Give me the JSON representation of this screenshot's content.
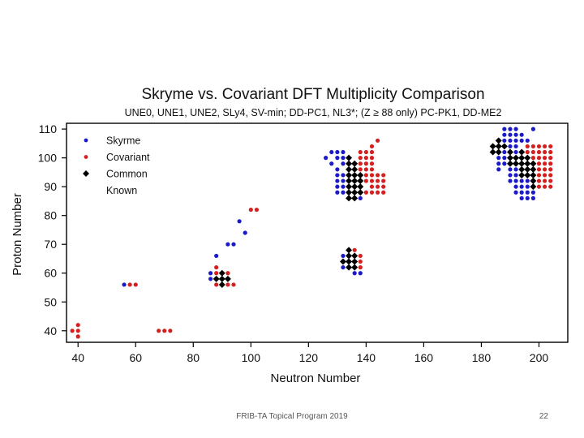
{
  "chart_data": {
    "type": "scatter",
    "title": "Skryme vs. Covariant DFT Multiplicity Comparison",
    "subtitle": "UNE0, UNE1, UNE2, SLy4, SV-min; DD-PC1, NL3*; (Z ≥ 88 only) PC-PK1, DD-ME2",
    "xlabel": "Neutron Number",
    "ylabel": "Proton Number",
    "xlim": [
      36,
      210
    ],
    "ylim": [
      36,
      112
    ],
    "xticks": [
      "40",
      "60",
      "80",
      "100",
      "120",
      "140",
      "160",
      "180",
      "200"
    ],
    "yticks": [
      "40",
      "50",
      "60",
      "70",
      "80",
      "90",
      "100",
      "110"
    ],
    "legend_position": "top-left",
    "series": [
      {
        "name": "Skyrme",
        "color": "#1a1ac8",
        "marker": "circle",
        "points": [
          [
            56,
            56
          ],
          [
            86,
            58
          ],
          [
            86,
            60
          ],
          [
            88,
            66
          ],
          [
            92,
            70
          ],
          [
            94,
            70
          ],
          [
            96,
            78
          ],
          [
            98,
            74
          ],
          [
            126,
            100
          ],
          [
            128,
            98
          ],
          [
            128,
            102
          ],
          [
            130,
            96
          ],
          [
            130,
            100
          ],
          [
            130,
            102
          ],
          [
            132,
            90
          ],
          [
            132,
            92
          ],
          [
            132,
            94
          ],
          [
            132,
            98
          ],
          [
            132,
            100
          ],
          [
            132,
            102
          ],
          [
            130,
            94
          ],
          [
            130,
            92
          ],
          [
            130,
            90
          ],
          [
            130,
            88
          ],
          [
            132,
            88
          ],
          [
            134,
            88
          ],
          [
            134,
            86
          ],
          [
            136,
            86
          ],
          [
            138,
            86
          ],
          [
            136,
            60
          ],
          [
            138,
            60
          ],
          [
            132,
            62
          ],
          [
            132,
            64
          ],
          [
            132,
            66
          ],
          [
            134,
            68
          ],
          [
            186,
            96
          ],
          [
            186,
            98
          ],
          [
            186,
            100
          ],
          [
            188,
            98
          ],
          [
            188,
            100
          ],
          [
            188,
            102
          ],
          [
            188,
            106
          ],
          [
            188,
            108
          ],
          [
            188,
            110
          ],
          [
            190,
            104
          ],
          [
            190,
            106
          ],
          [
            190,
            108
          ],
          [
            190,
            110
          ],
          [
            192,
            102
          ],
          [
            192,
            104
          ],
          [
            192,
            106
          ],
          [
            192,
            108
          ],
          [
            192,
            110
          ],
          [
            194,
            106
          ],
          [
            194,
            108
          ],
          [
            196,
            106
          ],
          [
            198,
            110
          ],
          [
            190,
            92
          ],
          [
            190,
            94
          ],
          [
            190,
            96
          ],
          [
            192,
            88
          ],
          [
            192,
            90
          ],
          [
            192,
            92
          ],
          [
            192,
            94
          ],
          [
            192,
            96
          ],
          [
            194,
            86
          ],
          [
            194,
            88
          ],
          [
            194,
            90
          ],
          [
            194,
            92
          ],
          [
            196,
            86
          ],
          [
            196,
            88
          ],
          [
            196,
            90
          ],
          [
            196,
            92
          ],
          [
            198,
            86
          ],
          [
            198,
            88
          ]
        ]
      },
      {
        "name": "Covariant",
        "color": "#d42020",
        "marker": "circle",
        "points": [
          [
            38,
            40
          ],
          [
            40,
            38
          ],
          [
            40,
            40
          ],
          [
            40,
            42
          ],
          [
            58,
            56
          ],
          [
            60,
            56
          ],
          [
            68,
            40
          ],
          [
            70,
            40
          ],
          [
            72,
            40
          ],
          [
            88,
            56
          ],
          [
            88,
            60
          ],
          [
            88,
            62
          ],
          [
            92,
            56
          ],
          [
            92,
            58
          ],
          [
            92,
            60
          ],
          [
            94,
            56
          ],
          [
            100,
            82
          ],
          [
            102,
            82
          ],
          [
            138,
            96
          ],
          [
            138,
            98
          ],
          [
            138,
            100
          ],
          [
            138,
            102
          ],
          [
            140,
            92
          ],
          [
            140,
            94
          ],
          [
            140,
            96
          ],
          [
            140,
            98
          ],
          [
            140,
            100
          ],
          [
            140,
            102
          ],
          [
            142,
            90
          ],
          [
            142,
            92
          ],
          [
            142,
            94
          ],
          [
            142,
            96
          ],
          [
            142,
            98
          ],
          [
            142,
            100
          ],
          [
            142,
            102
          ],
          [
            142,
            104
          ],
          [
            144,
            106
          ],
          [
            144,
            88
          ],
          [
            144,
            90
          ],
          [
            144,
            92
          ],
          [
            144,
            94
          ],
          [
            146,
            88
          ],
          [
            146,
            90
          ],
          [
            146,
            92
          ],
          [
            146,
            94
          ],
          [
            140,
            88
          ],
          [
            142,
            88
          ],
          [
            138,
            62
          ],
          [
            138,
            64
          ],
          [
            138,
            66
          ],
          [
            136,
            68
          ],
          [
            196,
            104
          ],
          [
            196,
            102
          ],
          [
            198,
            100
          ],
          [
            198,
            102
          ],
          [
            198,
            104
          ],
          [
            200,
            94
          ],
          [
            200,
            96
          ],
          [
            200,
            98
          ],
          [
            200,
            100
          ],
          [
            200,
            102
          ],
          [
            200,
            104
          ],
          [
            202,
            90
          ],
          [
            202,
            92
          ],
          [
            202,
            94
          ],
          [
            202,
            96
          ],
          [
            202,
            98
          ],
          [
            202,
            100
          ],
          [
            202,
            102
          ],
          [
            202,
            104
          ],
          [
            204,
            90
          ],
          [
            204,
            92
          ],
          [
            204,
            94
          ],
          [
            204,
            96
          ],
          [
            204,
            98
          ],
          [
            204,
            100
          ],
          [
            204,
            102
          ],
          [
            204,
            104
          ],
          [
            200,
            90
          ],
          [
            200,
            92
          ]
        ]
      },
      {
        "name": "Common",
        "color": "#000000",
        "marker": "diamond",
        "points": [
          [
            88,
            58
          ],
          [
            90,
            56
          ],
          [
            90,
            58
          ],
          [
            90,
            60
          ],
          [
            92,
            58
          ],
          [
            134,
            86
          ],
          [
            134,
            88
          ],
          [
            134,
            90
          ],
          [
            134,
            92
          ],
          [
            134,
            94
          ],
          [
            134,
            96
          ],
          [
            134,
            98
          ],
          [
            134,
            100
          ],
          [
            136,
            88
          ],
          [
            136,
            90
          ],
          [
            136,
            92
          ],
          [
            136,
            94
          ],
          [
            136,
            96
          ],
          [
            136,
            98
          ],
          [
            138,
            88
          ],
          [
            138,
            90
          ],
          [
            138,
            92
          ],
          [
            138,
            94
          ],
          [
            136,
            86
          ],
          [
            134,
            62
          ],
          [
            134,
            64
          ],
          [
            134,
            66
          ],
          [
            134,
            68
          ],
          [
            136,
            62
          ],
          [
            136,
            64
          ],
          [
            136,
            66
          ],
          [
            132,
            64
          ],
          [
            184,
            102
          ],
          [
            184,
            104
          ],
          [
            186,
            102
          ],
          [
            186,
            104
          ],
          [
            186,
            106
          ],
          [
            188,
            104
          ],
          [
            190,
            98
          ],
          [
            190,
            100
          ],
          [
            190,
            102
          ],
          [
            192,
            98
          ],
          [
            192,
            100
          ],
          [
            194,
            94
          ],
          [
            194,
            96
          ],
          [
            194,
            98
          ],
          [
            194,
            100
          ],
          [
            194,
            102
          ],
          [
            196,
            94
          ],
          [
            196,
            96
          ],
          [
            196,
            98
          ],
          [
            196,
            100
          ],
          [
            198,
            90
          ],
          [
            198,
            92
          ],
          [
            198,
            94
          ],
          [
            198,
            96
          ],
          [
            198,
            98
          ]
        ]
      },
      {
        "name": "Known",
        "color": "#ffffff",
        "marker": "none",
        "points": []
      }
    ]
  },
  "footer": {
    "text": "FRIB-TA Topical Program 2019",
    "slide_number": "22"
  }
}
